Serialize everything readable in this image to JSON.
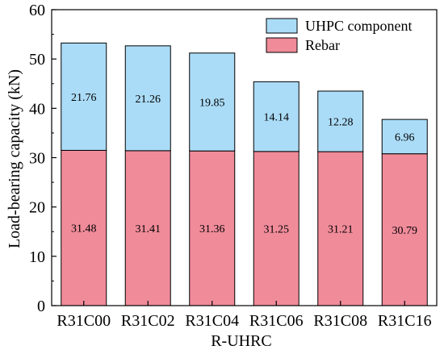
{
  "chart_data": {
    "type": "bar",
    "stacked": true,
    "categories": [
      "R31C00",
      "R31C02",
      "R31C04",
      "R31C06",
      "R31C08",
      "R31C16"
    ],
    "series": [
      {
        "name": "Rebar",
        "values": [
          31.48,
          31.41,
          31.36,
          31.25,
          31.21,
          30.79
        ],
        "color": "#f08b9a"
      },
      {
        "name": "UHPC component",
        "values": [
          21.76,
          21.26,
          19.85,
          14.14,
          12.28,
          6.96
        ],
        "color": "#abdcf7"
      }
    ],
    "xlabel": "R-UHRC",
    "ylabel": "Load-bearing capacity (kN)",
    "ylim": [
      0,
      60
    ],
    "yticks": [
      0,
      10,
      20,
      30,
      40,
      50,
      60
    ],
    "grid": false,
    "legend_position": "top-right",
    "legend_order": [
      "UHPC component",
      "Rebar"
    ]
  }
}
